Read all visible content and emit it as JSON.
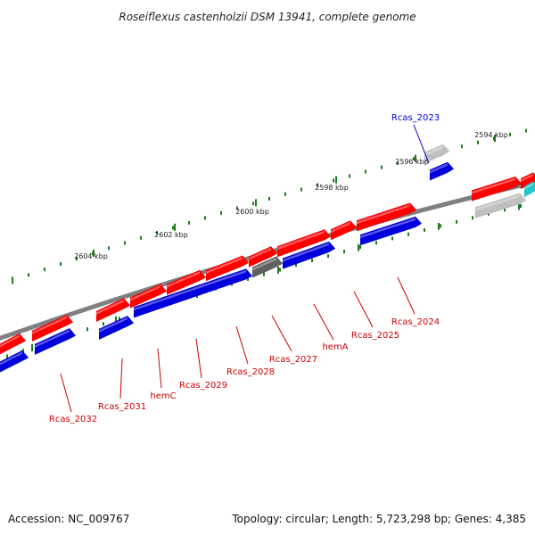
{
  "title": "Roseiflexus castenholzii DSM 13941, complete genome",
  "footer": {
    "accession": "Accession: NC_009767",
    "summary": "Topology: circular; Length: 5,723,298 bp; Genes: 4,385"
  },
  "colors": {
    "backbone": "#808080",
    "tick": "#1f7a1f",
    "gene_forward": "#ff0000",
    "gene_reverse": "#0000dd",
    "gene_rna": "#c0c0c0",
    "gene_pseudo": "#606060",
    "gene_other": "#20c8c8",
    "label_red": "#cc0000",
    "label_blue": "#0000cc"
  },
  "ticks": [
    {
      "label": "2594 kbp"
    },
    {
      "label": "2596 kbp"
    },
    {
      "label": "2598 kbp"
    },
    {
      "label": "2600 kbp"
    },
    {
      "label": "2602 kbp"
    },
    {
      "label": "2604 kbp"
    }
  ],
  "gene_labels": [
    {
      "text": "Rcas_2023",
      "color": "blue"
    },
    {
      "text": "Rcas_2024",
      "color": "red"
    },
    {
      "text": "Rcas_2025",
      "color": "red"
    },
    {
      "text": "hemA",
      "color": "red"
    },
    {
      "text": "Rcas_2027",
      "color": "red"
    },
    {
      "text": "Rcas_2028",
      "color": "red"
    },
    {
      "text": "Rcas_2029",
      "color": "red"
    },
    {
      "text": "hemC",
      "color": "red"
    },
    {
      "text": "Rcas_2031",
      "color": "red"
    },
    {
      "text": "Rcas_2032",
      "color": "red"
    }
  ]
}
